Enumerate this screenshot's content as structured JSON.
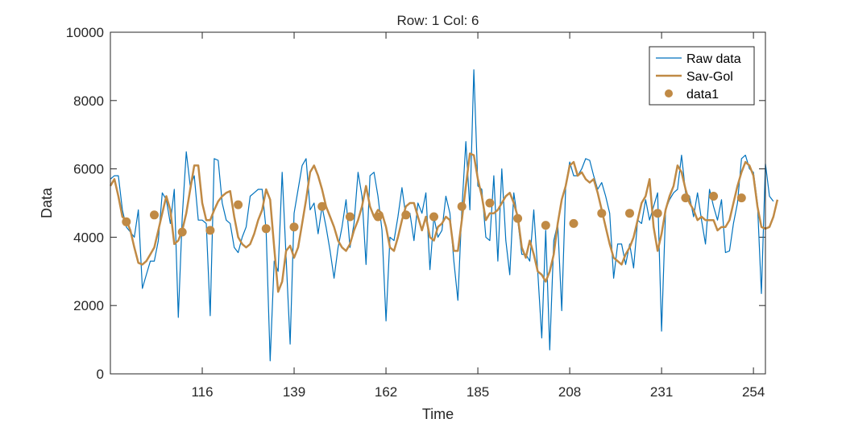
{
  "chart_data": {
    "type": "line",
    "title": "Row: 1  Col: 6",
    "xlabel": "Time",
    "ylabel": "Data",
    "xlim": [
      93,
      257
    ],
    "ylim": [
      0,
      10000
    ],
    "xticks": [
      116,
      139,
      162,
      185,
      208,
      231,
      254
    ],
    "yticks": [
      0,
      2000,
      4000,
      6000,
      8000,
      10000
    ],
    "xtick_labels": [
      "116",
      "139",
      "162",
      "185",
      "208",
      "231",
      "254"
    ],
    "ytick_labels": [
      "0",
      "2000",
      "4000",
      "6000",
      "8000",
      "10000"
    ],
    "grid": false,
    "legend_position": "top-right",
    "legend": [
      "Raw data",
      "Sav-Gol",
      "data1"
    ],
    "colors": {
      "raw": "#0072BD",
      "savgol": "#C08A45",
      "data1": "#C08A45",
      "axis": "#262626"
    },
    "series": [
      {
        "name": "Raw data",
        "kind": "line",
        "x_start": 93,
        "x_step": 1,
        "values": [
          5700,
          5800,
          5800,
          4800,
          4300,
          4150,
          4000,
          4800,
          2500,
          2900,
          3300,
          3300,
          3900,
          5300,
          5100,
          4400,
          5400,
          1650,
          4600,
          6500,
          5500,
          5800,
          4500,
          4500,
          4400,
          1700,
          6300,
          6250,
          5000,
          4500,
          4400,
          3700,
          3550,
          4000,
          4300,
          5200,
          5300,
          5400,
          5400,
          4200,
          380,
          3300,
          3000,
          5900,
          3400,
          870,
          4700,
          5400,
          6100,
          6300,
          4800,
          5000,
          4100,
          4900,
          4300,
          3600,
          2800,
          3700,
          4300,
          5100,
          3700,
          4400,
          5900,
          5200,
          3200,
          5800,
          5900,
          5200,
          4200,
          1550,
          4000,
          3900,
          4600,
          5450,
          4600,
          4700,
          3900,
          5000,
          4700,
          5300,
          3050,
          4600,
          4000,
          4200,
          5200,
          4700,
          3300,
          2150,
          4800,
          6800,
          4800,
          8900,
          5500,
          5400,
          4000,
          3900,
          5800,
          3300,
          6000,
          3900,
          2900,
          5300,
          4500,
          3500,
          3500,
          3300,
          4800,
          3000,
          1050,
          4200,
          700,
          3900,
          4400,
          1850,
          5500,
          6200,
          5800,
          5800,
          6000,
          6300,
          6250,
          5800,
          5400,
          5600,
          5200,
          4700,
          2800,
          3800,
          3800,
          3200,
          3800,
          3100,
          4500,
          4400,
          5100,
          4500,
          4900,
          5300,
          1250,
          4800,
          5100,
          5300,
          5400,
          6400,
          5300,
          5200,
          4600,
          5300,
          4500,
          3800,
          5400,
          4900,
          4500,
          5100,
          3550,
          3600,
          4400,
          5000,
          6300,
          6400,
          6000,
          5900,
          5000,
          2350,
          6150,
          5200,
          5050
        ]
      },
      {
        "name": "Sav-Gol",
        "kind": "line",
        "x_start": 93,
        "x_step": 1,
        "values": [
          5500,
          5700,
          5200,
          4600,
          4500,
          4200,
          3700,
          3250,
          3200,
          3300,
          3500,
          3700,
          4200,
          4700,
          5200,
          4800,
          3800,
          3900,
          4200,
          4700,
          5400,
          6100,
          6100,
          5000,
          4500,
          4500,
          4800,
          5050,
          5200,
          5300,
          5350,
          4600,
          4000,
          3800,
          3700,
          3800,
          4100,
          4500,
          4800,
          5400,
          5100,
          3700,
          2400,
          2700,
          3600,
          3750,
          3400,
          3700,
          4400,
          5100,
          5900,
          6100,
          5800,
          5400,
          4900,
          4600,
          4300,
          3900,
          3700,
          3600,
          3800,
          4200,
          4500,
          4900,
          5500,
          4900,
          4600,
          4800,
          4700,
          4300,
          3700,
          3600,
          4000,
          4500,
          4900,
          5000,
          5000,
          4600,
          4200,
          4600,
          4000,
          3900,
          4300,
          4400,
          4600,
          4500,
          3600,
          3600,
          4500,
          5500,
          6450,
          6400,
          5700,
          5200,
          4500,
          4700,
          4700,
          4800,
          5000,
          5200,
          5300,
          5000,
          4600,
          3700,
          3400,
          3900,
          3500,
          3000,
          2900,
          2700,
          3000,
          3500,
          4400,
          5100,
          5500,
          6100,
          6200,
          5800,
          5900,
          5700,
          5600,
          5700,
          5300,
          4800,
          4300,
          3800,
          3400,
          3300,
          3200,
          3500,
          3700,
          4000,
          4500,
          5000,
          5200,
          5700,
          4300,
          3600,
          4100,
          4800,
          5200,
          5500,
          6100,
          5900,
          5400,
          5000,
          4800,
          4500,
          4600,
          4500,
          4500,
          4500,
          4200,
          4300,
          4300,
          4500,
          5000,
          5500,
          5900,
          6200,
          6100,
          5800,
          4900,
          4300,
          4250,
          4300,
          4600,
          5100
        ]
      },
      {
        "name": "data1",
        "kind": "scatter",
        "x": [
          97,
          104,
          111,
          118,
          125,
          132,
          139,
          146,
          153,
          160,
          167,
          174,
          181,
          188,
          195,
          202,
          209,
          216,
          223,
          230,
          237,
          244,
          251
        ],
        "y": [
          4450,
          4650,
          4150,
          4200,
          4950,
          4250,
          4300,
          4900,
          4600,
          4600,
          4650,
          4600,
          4900,
          5000,
          4550,
          4350,
          4400,
          4700,
          4700,
          4700,
          5150,
          5200,
          5150
        ]
      }
    ]
  }
}
